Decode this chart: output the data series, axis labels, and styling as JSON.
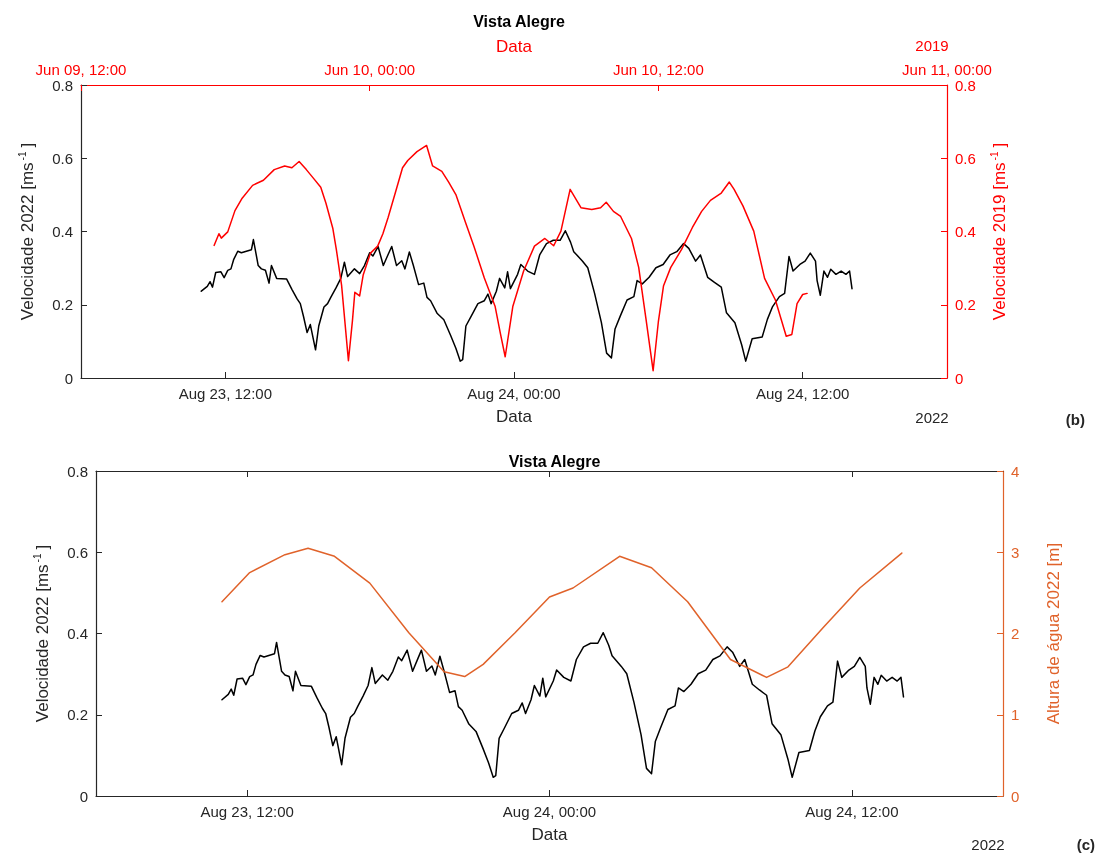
{
  "chart_data": [
    {
      "type": "line",
      "title": "Vista Alegre",
      "xlabel": "Data",
      "x2label": "Data",
      "ylabel": "Velocidade 2022 [ms$^{-1}$]",
      "y2label": "Velocidade 2019 [ms$^{-1}$]",
      "xlim": [
        "2022-08-23T06:00",
        "2022-08-24T18:00"
      ],
      "xticks": [
        {
          "value": "2022-08-23T12:00",
          "label": "Aug 23, 12:00"
        },
        {
          "value": "2022-08-24T00:00",
          "label": "Aug 24, 00:00"
        },
        {
          "value": "2022-08-24T12:00",
          "label": "Aug 24, 12:00"
        }
      ],
      "x2lim": [
        "2019-06-09T12:00",
        "2019-06-11T00:00"
      ],
      "x2ticks": [
        {
          "value": "2019-06-09T12:00",
          "label": "Jun 09, 12:00"
        },
        {
          "value": "2019-06-10T00:00",
          "label": "Jun 10, 00:00"
        },
        {
          "value": "2019-06-10T12:00",
          "label": "Jun 10, 12:00"
        },
        {
          "value": "2019-06-11T00:00",
          "label": "Jun 11, 00:00"
        }
      ],
      "ylim": [
        0,
        0.8
      ],
      "yticks": [
        0,
        0.2,
        0.4,
        0.6,
        0.8
      ],
      "y2lim": [
        0,
        0.8
      ],
      "y2ticks": [
        0,
        0.2,
        0.4,
        0.6,
        0.8
      ],
      "line_style": "solid",
      "marker": "none",
      "annotations": [
        "2019",
        "2022",
        "(b)"
      ],
      "series": [
        {
          "color": "#000000",
          "x": [
            "2022-08-23T11:00",
            "2022-08-23T11:15",
            "2022-08-23T11:22",
            "2022-08-23T11:28",
            "2022-08-23T11:36",
            "2022-08-23T11:49",
            "2022-08-23T11:57",
            "2022-08-23T12:06",
            "2022-08-23T12:14",
            "2022-08-23T12:21",
            "2022-08-23T12:31",
            "2022-08-23T12:40",
            "2022-08-23T13:05",
            "2022-08-23T13:10",
            "2022-08-23T13:22",
            "2022-08-23T13:30",
            "2022-08-23T13:40",
            "2022-08-23T13:49",
            "2022-08-23T13:55",
            "2022-08-23T14:08",
            "2022-08-23T14:33",
            "2022-08-23T14:46",
            "2022-08-23T14:59",
            "2022-08-23T15:07",
            "2022-08-23T15:15",
            "2022-08-23T15:24",
            "2022-08-23T15:32",
            "2022-08-23T15:45",
            "2022-08-23T15:53",
            "2022-08-23T16:06",
            "2022-08-23T16:15",
            "2022-08-23T16:23",
            "2022-08-23T16:36",
            "2022-08-23T16:48",
            "2022-08-23T16:57",
            "2022-08-23T17:05",
            "2022-08-23T17:22",
            "2022-08-23T17:35",
            "2022-08-23T17:47",
            "2022-08-23T18:00",
            "2022-08-23T18:08",
            "2022-08-23T18:21",
            "2022-08-23T18:34",
            "2022-08-23T18:46",
            "2022-08-23T18:55",
            "2022-08-23T19:07",
            "2022-08-23T19:20",
            "2022-08-23T19:28",
            "2022-08-23T19:39",
            "2022-08-23T19:49",
            "2022-08-23T20:02",
            "2022-08-23T20:15",
            "2022-08-23T20:23",
            "2022-08-23T20:32",
            "2022-08-23T20:48",
            "2022-08-23T21:05",
            "2022-08-23T21:22",
            "2022-08-23T21:35",
            "2022-08-23T21:46",
            "2022-08-23T21:52",
            "2022-08-23T22:00",
            "2022-08-23T22:13",
            "2022-08-23T22:30",
            "2022-08-23T22:46",
            "2022-08-23T22:55",
            "2022-08-23T23:03",
            "2022-08-23T23:16",
            "2022-08-23T23:24",
            "2022-08-23T23:37",
            "2022-08-23T23:44",
            "2022-08-23T23:51",
            "2022-08-24T00:09",
            "2022-08-24T00:17",
            "2022-08-24T00:34",
            "2022-08-24T00:51",
            "2022-08-24T01:04",
            "2022-08-24T01:21",
            "2022-08-24T01:38",
            "2022-08-24T01:55",
            "2022-08-24T02:08",
            "2022-08-24T02:21",
            "2022-08-24T02:29",
            "2022-08-24T02:51",
            "2022-08-24T03:04",
            "2022-08-24T03:21",
            "2022-08-24T03:38",
            "2022-08-24T03:51",
            "2022-08-24T04:03",
            "2022-08-24T04:12",
            "2022-08-24T04:25",
            "2022-08-24T04:42",
            "2022-08-24T04:59",
            "2022-08-24T05:07",
            "2022-08-24T05:20",
            "2022-08-24T05:37",
            "2022-08-24T05:54",
            "2022-08-24T06:12",
            "2022-08-24T06:29",
            "2022-08-24T06:46",
            "2022-08-24T07:03",
            "2022-08-24T07:16",
            "2022-08-24T07:33",
            "2022-08-24T07:45",
            "2022-08-24T08:03",
            "2022-08-24T08:20",
            "2022-08-24T08:37",
            "2022-08-24T08:50",
            "2022-08-24T09:11",
            "2022-08-24T09:28",
            "2022-08-24T09:38",
            "2022-08-24T09:54",
            "2022-08-24T10:19",
            "2022-08-24T10:32",
            "2022-08-24T10:45",
            "2022-08-24T11:02",
            "2022-08-24T11:15",
            "2022-08-24T11:26",
            "2022-08-24T11:36",
            "2022-08-24T11:53",
            "2022-08-24T12:06",
            "2022-08-24T12:19",
            "2022-08-24T12:32",
            "2022-08-24T12:36",
            "2022-08-24T12:44",
            "2022-08-24T12:53",
            "2022-08-24T13:02",
            "2022-08-24T13:10",
            "2022-08-24T13:23",
            "2022-08-24T13:36",
            "2022-08-24T13:48",
            "2022-08-24T13:57",
            "2022-08-24T14:03"
          ],
          "values": [
            0.237,
            0.25,
            0.263,
            0.248,
            0.288,
            0.29,
            0.274,
            0.294,
            0.298,
            0.324,
            0.346,
            0.342,
            0.35,
            0.378,
            0.307,
            0.298,
            0.294,
            0.259,
            0.307,
            0.272,
            0.27,
            0.242,
            0.216,
            0.203,
            0.168,
            0.124,
            0.146,
            0.077,
            0.142,
            0.194,
            0.203,
            0.22,
            0.246,
            0.272,
            0.316,
            0.277,
            0.298,
            0.285,
            0.307,
            0.342,
            0.333,
            0.359,
            0.307,
            0.337,
            0.359,
            0.307,
            0.32,
            0.298,
            0.344,
            0.307,
            0.255,
            0.259,
            0.22,
            0.211,
            0.177,
            0.159,
            0.116,
            0.081,
            0.046,
            0.05,
            0.142,
            0.168,
            0.203,
            0.211,
            0.229,
            0.203,
            0.237,
            0.272,
            0.246,
            0.29,
            0.244,
            0.283,
            0.31,
            0.292,
            0.283,
            0.336,
            0.367,
            0.376,
            0.376,
            0.402,
            0.371,
            0.345,
            0.319,
            0.301,
            0.231,
            0.151,
            0.068,
            0.055,
            0.134,
            0.169,
            0.213,
            0.222,
            0.266,
            0.257,
            0.275,
            0.301,
            0.31,
            0.336,
            0.345,
            0.367,
            0.354,
            0.319,
            0.336,
            0.275,
            0.261,
            0.248,
            0.178,
            0.151,
            0.09,
            0.046,
            0.107,
            0.112,
            0.16,
            0.195,
            0.222,
            0.231,
            0.332,
            0.292,
            0.31,
            0.319,
            0.341,
            0.319,
            0.266,
            0.226,
            0.292,
            0.275,
            0.297,
            0.283,
            0.292,
            0.283,
            0.292,
            0.244
          ]
        },
        {
          "color": "#ff0000",
          "axis": "x2",
          "x": [
            "2019-06-09T17:32",
            "2019-06-09T17:44",
            "2019-06-09T17:50",
            "2019-06-09T18:06",
            "2019-06-09T18:24",
            "2019-06-09T18:42",
            "2019-06-09T19:08",
            "2019-06-09T19:35",
            "2019-06-09T20:02",
            "2019-06-09T20:28",
            "2019-06-09T20:46",
            "2019-06-09T21:04",
            "2019-06-09T21:22",
            "2019-06-09T21:40",
            "2019-06-09T21:58",
            "2019-06-09T22:11",
            "2019-06-09T22:28",
            "2019-06-09T22:37",
            "2019-06-09T22:50",
            "2019-06-09T23:07",
            "2019-06-09T23:17",
            "2019-06-09T23:23",
            "2019-06-09T23:35",
            "2019-06-09T23:44",
            "2019-06-10T00:02",
            "2019-06-10T00:20",
            "2019-06-10T00:33",
            "2019-06-10T00:46",
            "2019-06-10T01:04",
            "2019-06-10T01:22",
            "2019-06-10T01:35",
            "2019-06-10T01:58",
            "2019-06-10T02:22",
            "2019-06-10T02:37",
            "2019-06-10T03:00",
            "2019-06-10T03:17",
            "2019-06-10T03:35",
            "2019-06-10T03:58",
            "2019-06-10T04:20",
            "2019-06-10T04:46",
            "2019-06-10T05:13",
            "2019-06-10T05:26",
            "2019-06-10T05:38",
            "2019-06-10T05:57",
            "2019-06-10T06:24",
            "2019-06-10T06:51",
            "2019-06-10T07:17",
            "2019-06-10T07:39",
            "2019-06-10T07:57",
            "2019-06-10T08:20",
            "2019-06-10T08:47",
            "2019-06-10T09:14",
            "2019-06-10T09:36",
            "2019-06-10T09:50",
            "2019-06-10T10:08",
            "2019-06-10T10:26",
            "2019-06-10T10:53",
            "2019-06-10T11:11",
            "2019-06-10T11:29",
            "2019-06-10T11:47",
            "2019-06-10T12:00",
            "2019-06-10T12:13",
            "2019-06-10T12:31",
            "2019-06-10T12:58",
            "2019-06-10T13:25",
            "2019-06-10T13:48",
            "2019-06-10T14:10",
            "2019-06-10T14:37",
            "2019-06-10T14:57",
            "2019-06-10T15:09",
            "2019-06-10T15:31",
            "2019-06-10T15:58",
            "2019-06-10T16:25",
            "2019-06-10T16:52",
            "2019-06-10T17:19",
            "2019-06-10T17:33",
            "2019-06-10T17:46",
            "2019-06-10T18:00",
            "2019-06-10T18:11"
          ],
          "values": [
            0.362,
            0.394,
            0.382,
            0.399,
            0.457,
            0.491,
            0.526,
            0.54,
            0.569,
            0.579,
            0.574,
            0.591,
            0.569,
            0.545,
            0.521,
            0.477,
            0.409,
            0.35,
            0.253,
            0.047,
            0.156,
            0.234,
            0.224,
            0.282,
            0.341,
            0.36,
            0.394,
            0.438,
            0.506,
            0.574,
            0.594,
            0.618,
            0.635,
            0.579,
            0.564,
            0.535,
            0.501,
            0.428,
            0.36,
            0.273,
            0.195,
            0.122,
            0.058,
            0.195,
            0.292,
            0.36,
            0.381,
            0.361,
            0.401,
            0.515,
            0.465,
            0.46,
            0.465,
            0.48,
            0.455,
            0.441,
            0.381,
            0.302,
            0.163,
            0.02,
            0.153,
            0.252,
            0.302,
            0.351,
            0.411,
            0.455,
            0.485,
            0.505,
            0.535,
            0.515,
            0.47,
            0.401,
            0.272,
            0.213,
            0.114,
            0.119,
            0.203,
            0.228,
            0.231
          ]
        }
      ]
    },
    {
      "type": "line",
      "title": "Vista Alegre",
      "xlabel": "Data",
      "ylabel": "Velocidade 2022 [ms$^{-1}$]",
      "y2label": "Altura de água 2022 [m]",
      "xlim": [
        "2022-08-23T06:00",
        "2022-08-24T18:00"
      ],
      "xticks": [
        {
          "value": "2022-08-23T12:00",
          "label": "Aug 23, 12:00"
        },
        {
          "value": "2022-08-24T00:00",
          "label": "Aug 24, 00:00"
        },
        {
          "value": "2022-08-24T12:00",
          "label": "Aug 24, 12:00"
        }
      ],
      "ylim": [
        0,
        0.8
      ],
      "yticks": [
        0,
        0.2,
        0.4,
        0.6,
        0.8
      ],
      "y2lim": [
        0,
        4
      ],
      "y2ticks": [
        0,
        1,
        2,
        3,
        4
      ],
      "line_style": "solid",
      "marker": "none",
      "annotations": [
        "2022",
        "(c)"
      ],
      "series": [
        {
          "color": "#000000",
          "x": [
            "2022-08-23T11:00",
            "2022-08-23T11:15",
            "2022-08-23T11:22",
            "2022-08-23T11:28",
            "2022-08-23T11:36",
            "2022-08-23T11:49",
            "2022-08-23T11:57",
            "2022-08-23T12:06",
            "2022-08-23T12:14",
            "2022-08-23T12:21",
            "2022-08-23T12:31",
            "2022-08-23T12:40",
            "2022-08-23T13:05",
            "2022-08-23T13:10",
            "2022-08-23T13:22",
            "2022-08-23T13:30",
            "2022-08-23T13:40",
            "2022-08-23T13:49",
            "2022-08-23T13:55",
            "2022-08-23T14:08",
            "2022-08-23T14:33",
            "2022-08-23T14:46",
            "2022-08-23T14:59",
            "2022-08-23T15:07",
            "2022-08-23T15:15",
            "2022-08-23T15:24",
            "2022-08-23T15:32",
            "2022-08-23T15:45",
            "2022-08-23T15:53",
            "2022-08-23T16:06",
            "2022-08-23T16:15",
            "2022-08-23T16:23",
            "2022-08-23T16:36",
            "2022-08-23T16:48",
            "2022-08-23T16:57",
            "2022-08-23T17:05",
            "2022-08-23T17:22",
            "2022-08-23T17:35",
            "2022-08-23T17:47",
            "2022-08-23T18:00",
            "2022-08-23T18:08",
            "2022-08-23T18:21",
            "2022-08-23T18:34",
            "2022-08-23T18:46",
            "2022-08-23T18:55",
            "2022-08-23T19:07",
            "2022-08-23T19:20",
            "2022-08-23T19:28",
            "2022-08-23T19:39",
            "2022-08-23T19:49",
            "2022-08-23T20:02",
            "2022-08-23T20:15",
            "2022-08-23T20:23",
            "2022-08-23T20:32",
            "2022-08-23T20:48",
            "2022-08-23T21:05",
            "2022-08-23T21:22",
            "2022-08-23T21:35",
            "2022-08-23T21:46",
            "2022-08-23T21:52",
            "2022-08-23T22:00",
            "2022-08-23T22:13",
            "2022-08-23T22:30",
            "2022-08-23T22:46",
            "2022-08-23T22:55",
            "2022-08-23T23:03",
            "2022-08-23T23:16",
            "2022-08-23T23:24",
            "2022-08-23T23:37",
            "2022-08-23T23:44",
            "2022-08-23T23:51",
            "2022-08-24T00:09",
            "2022-08-24T00:17",
            "2022-08-24T00:34",
            "2022-08-24T00:51",
            "2022-08-24T01:04",
            "2022-08-24T01:21",
            "2022-08-24T01:38",
            "2022-08-24T01:55",
            "2022-08-24T02:08",
            "2022-08-24T02:21",
            "2022-08-24T02:29",
            "2022-08-24T02:51",
            "2022-08-24T03:04",
            "2022-08-24T03:21",
            "2022-08-24T03:38",
            "2022-08-24T03:51",
            "2022-08-24T04:03",
            "2022-08-24T04:12",
            "2022-08-24T04:25",
            "2022-08-24T04:42",
            "2022-08-24T04:59",
            "2022-08-24T05:07",
            "2022-08-24T05:20",
            "2022-08-24T05:37",
            "2022-08-24T05:54",
            "2022-08-24T06:12",
            "2022-08-24T06:29",
            "2022-08-24T06:46",
            "2022-08-24T07:03",
            "2022-08-24T07:16",
            "2022-08-24T07:33",
            "2022-08-24T07:45",
            "2022-08-24T08:03",
            "2022-08-24T08:20",
            "2022-08-24T08:37",
            "2022-08-24T08:50",
            "2022-08-24T09:11",
            "2022-08-24T09:28",
            "2022-08-24T09:38",
            "2022-08-24T09:54",
            "2022-08-24T10:19",
            "2022-08-24T10:32",
            "2022-08-24T10:45",
            "2022-08-24T11:02",
            "2022-08-24T11:15",
            "2022-08-24T11:26",
            "2022-08-24T11:36",
            "2022-08-24T11:53",
            "2022-08-24T12:06",
            "2022-08-24T12:19",
            "2022-08-24T12:32",
            "2022-08-24T12:36",
            "2022-08-24T12:44",
            "2022-08-24T12:53",
            "2022-08-24T13:02",
            "2022-08-24T13:10",
            "2022-08-24T13:23",
            "2022-08-24T13:36",
            "2022-08-24T13:48",
            "2022-08-24T13:57",
            "2022-08-24T14:03"
          ],
          "values": [
            0.237,
            0.25,
            0.263,
            0.248,
            0.288,
            0.29,
            0.274,
            0.294,
            0.298,
            0.324,
            0.346,
            0.342,
            0.35,
            0.378,
            0.307,
            0.298,
            0.294,
            0.259,
            0.307,
            0.272,
            0.27,
            0.242,
            0.216,
            0.203,
            0.168,
            0.124,
            0.146,
            0.077,
            0.142,
            0.194,
            0.203,
            0.22,
            0.246,
            0.272,
            0.316,
            0.277,
            0.298,
            0.285,
            0.307,
            0.342,
            0.333,
            0.359,
            0.307,
            0.337,
            0.359,
            0.307,
            0.32,
            0.298,
            0.344,
            0.307,
            0.255,
            0.259,
            0.22,
            0.211,
            0.177,
            0.159,
            0.116,
            0.081,
            0.046,
            0.05,
            0.142,
            0.168,
            0.203,
            0.211,
            0.229,
            0.203,
            0.237,
            0.272,
            0.246,
            0.29,
            0.244,
            0.283,
            0.31,
            0.292,
            0.283,
            0.336,
            0.367,
            0.376,
            0.376,
            0.402,
            0.371,
            0.345,
            0.319,
            0.301,
            0.231,
            0.151,
            0.068,
            0.055,
            0.134,
            0.169,
            0.213,
            0.222,
            0.266,
            0.257,
            0.275,
            0.301,
            0.31,
            0.336,
            0.345,
            0.367,
            0.354,
            0.319,
            0.336,
            0.275,
            0.261,
            0.248,
            0.178,
            0.151,
            0.09,
            0.046,
            0.107,
            0.112,
            0.16,
            0.195,
            0.222,
            0.231,
            0.332,
            0.292,
            0.31,
            0.319,
            0.341,
            0.319,
            0.266,
            0.226,
            0.292,
            0.275,
            0.297,
            0.283,
            0.292,
            0.283,
            0.292,
            0.244
          ]
        },
        {
          "color": "#e0622a",
          "axis": "y2",
          "x": [
            "2022-08-23T11:00",
            "2022-08-23T12:06",
            "2022-08-23T13:30",
            "2022-08-23T14:25",
            "2022-08-23T15:28",
            "2022-08-23T16:52",
            "2022-08-23T18:25",
            "2022-08-23T19:49",
            "2022-08-23T20:38",
            "2022-08-23T21:22",
            "2022-08-23T22:38",
            "2022-08-24T00:00",
            "2022-08-24T00:56",
            "2022-08-24T02:47",
            "2022-08-24T04:03",
            "2022-08-24T05:29",
            "2022-08-24T07:11",
            "2022-08-24T08:37",
            "2022-08-24T09:28",
            "2022-08-24T10:53",
            "2022-08-24T12:19",
            "2022-08-24T13:59"
          ],
          "values": [
            2.39,
            2.75,
            2.97,
            3.05,
            2.95,
            2.62,
            2.01,
            1.53,
            1.47,
            1.62,
            2.01,
            2.45,
            2.56,
            2.95,
            2.81,
            2.39,
            1.68,
            1.46,
            1.59,
            2.08,
            2.56,
            2.99
          ]
        }
      ]
    }
  ]
}
